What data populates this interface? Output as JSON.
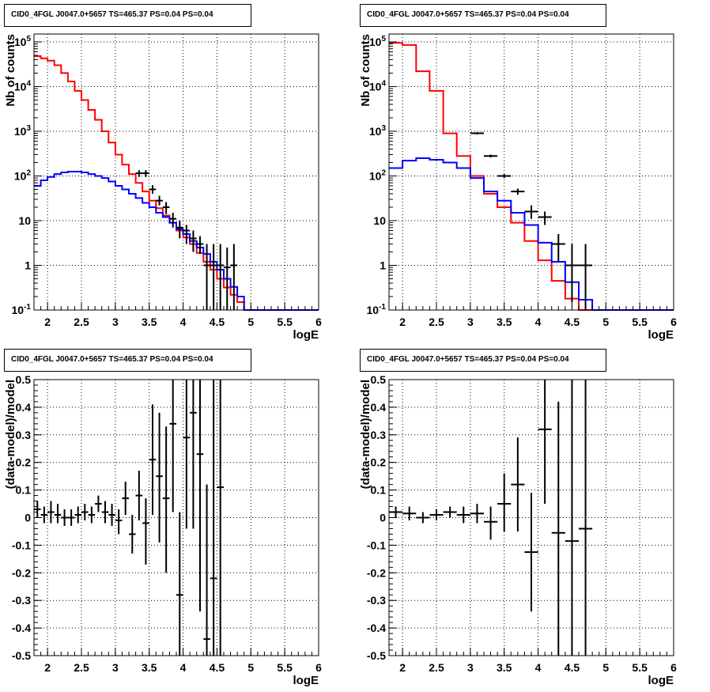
{
  "colors": {
    "frame": "#000000",
    "grid": "#000000",
    "data": "#000000",
    "total_model": "#ff0000",
    "background_model": "#0000ff"
  },
  "chart_data": [
    {
      "type": "line",
      "title": "CID0_4FGL J0047.0+5657 TS=465.37 PS=0.04 PS=0.04",
      "xlabel": "logE",
      "ylabel": "Nb of counts",
      "xlim": [
        1.8,
        6.0
      ],
      "ylim": [
        0.1,
        150000
      ],
      "yscale": "log",
      "grid": true,
      "xticks": [
        "2",
        "2.5",
        "3",
        "3.5",
        "4",
        "4.5",
        "5",
        "5.5",
        "6"
      ],
      "yticks": [
        "10^-1",
        "1",
        "10",
        "10^2",
        "10^3",
        "10^4",
        "10^5"
      ],
      "series": [
        {
          "role": "total_model",
          "binwidth": 0.1,
          "edges_start": 1.8,
          "values": [
            48000,
            43000,
            38000,
            30000,
            20000,
            13000,
            8000,
            5000,
            3000,
            1800,
            1000,
            560,
            300,
            180,
            110,
            70,
            45,
            28,
            19,
            13,
            9,
            6,
            4.2,
            3.0,
            1.9,
            1.2,
            0.8,
            0.5,
            0.32,
            0.22,
            0.15,
            0.1,
            0.1,
            0.1,
            0.1,
            0.1,
            0.1,
            0.1,
            0.1,
            0.1,
            0.1,
            0.1
          ]
        },
        {
          "role": "background_model",
          "binwidth": 0.1,
          "edges_start": 1.8,
          "values": [
            60,
            80,
            95,
            110,
            120,
            125,
            125,
            120,
            110,
            100,
            90,
            75,
            60,
            50,
            40,
            32,
            25,
            20,
            15,
            12,
            9,
            6.5,
            5,
            3.5,
            2.5,
            1.8,
            1.2,
            0.8,
            0.5,
            0.33,
            0.2,
            0.1,
            0.1,
            0.1,
            0.1,
            0.1,
            0.1,
            0.1,
            0.1,
            0.1,
            0.1,
            0.1
          ]
        },
        {
          "role": "data",
          "x": [
            3.35,
            3.45,
            3.55,
            3.65,
            3.75,
            3.85,
            3.95,
            4.05,
            4.15,
            4.25,
            4.35,
            4.45,
            4.55,
            4.65,
            4.75
          ],
          "xerr": 0.05,
          "y": [
            115,
            115,
            50,
            28,
            20,
            11,
            7,
            6,
            4,
            3,
            1,
            1,
            1,
            0.9,
            1
          ],
          "ylo": [
            95,
            95,
            40,
            22,
            14,
            7,
            4,
            3,
            2,
            1.8,
            0.1,
            0.1,
            0.1,
            0.1,
            0.1
          ],
          "yhi": [
            135,
            135,
            62,
            36,
            26,
            15,
            10,
            8,
            6,
            4.5,
            3,
            3,
            3,
            2.5,
            3
          ]
        }
      ]
    },
    {
      "type": "line",
      "title": "CID0_4FGL J0047.0+5657 TS=465.37 PS=0.04 PS=0.04",
      "xlabel": "logE",
      "ylabel": "Nb of counts",
      "xlim": [
        1.8,
        6.0
      ],
      "ylim": [
        0.1,
        150000
      ],
      "yscale": "log",
      "grid": true,
      "xticks": [
        "2",
        "2.5",
        "3",
        "3.5",
        "4",
        "4.5",
        "5",
        "5.5",
        "6"
      ],
      "yticks": [
        "10^-1",
        "1",
        "10",
        "10^2",
        "10^3",
        "10^4",
        "10^5"
      ],
      "series": [
        {
          "role": "total_model",
          "binwidth": 0.2,
          "edges_start": 1.8,
          "values": [
            95000,
            85000,
            22000,
            8000,
            900,
            280,
            100,
            40,
            20,
            9,
            3.5,
            1.3,
            0.45,
            0.18,
            0.1,
            0.1,
            0.1,
            0.1,
            0.1,
            0.1,
            0.1
          ]
        },
        {
          "role": "background_model",
          "binwidth": 0.2,
          "edges_start": 1.8,
          "values": [
            150,
            220,
            250,
            230,
            200,
            150,
            90,
            45,
            28,
            15,
            8,
            3.2,
            1.2,
            0.42,
            0.17,
            0.1,
            0.1,
            0.1,
            0.1,
            0.1,
            0.1
          ]
        },
        {
          "role": "data",
          "x": [
            3.1,
            3.3,
            3.5,
            3.7,
            3.9,
            4.1,
            4.3,
            4.5,
            4.7
          ],
          "xerr": 0.1,
          "y": [
            900,
            280,
            100,
            45,
            16,
            12,
            3,
            1,
            1
          ],
          "ylo": [
            850,
            260,
            90,
            38,
            11,
            8,
            1.2,
            0.15,
            0.1
          ],
          "yhi": [
            950,
            300,
            110,
            52,
            22,
            16,
            5,
            3,
            3
          ]
        }
      ]
    },
    {
      "type": "scatter",
      "title": "CID0_4FGL J0047.0+5657 TS=465.37 PS=0.04 PS=0.04",
      "xlabel": "logE",
      "ylabel": "(data-model)/model",
      "xlim": [
        1.8,
        6.0
      ],
      "ylim": [
        -0.5,
        0.5
      ],
      "grid": true,
      "xticks": [
        "2",
        "2.5",
        "3",
        "3.5",
        "4",
        "4.5",
        "5",
        "5.5",
        "6"
      ],
      "yticks": [
        "-0.5",
        "-0.4",
        "-0.3",
        "-0.2",
        "-0.1",
        "0",
        "0.1",
        "0.2",
        "0.3",
        "0.4",
        "0.5"
      ],
      "xerr": 0.05,
      "points": [
        {
          "x": 1.85,
          "y": 0.03,
          "lo": 0.0,
          "hi": 0.06
        },
        {
          "x": 1.95,
          "y": 0.01,
          "lo": -0.02,
          "hi": 0.04
        },
        {
          "x": 2.05,
          "y": 0.02,
          "lo": -0.02,
          "hi": 0.06
        },
        {
          "x": 2.15,
          "y": 0.01,
          "lo": -0.02,
          "hi": 0.05
        },
        {
          "x": 2.25,
          "y": 0.0,
          "lo": -0.03,
          "hi": 0.03
        },
        {
          "x": 2.35,
          "y": 0.0,
          "lo": -0.03,
          "hi": 0.03
        },
        {
          "x": 2.45,
          "y": 0.01,
          "lo": -0.02,
          "hi": 0.04
        },
        {
          "x": 2.55,
          "y": 0.02,
          "lo": -0.01,
          "hi": 0.05
        },
        {
          "x": 2.65,
          "y": 0.01,
          "lo": -0.02,
          "hi": 0.04
        },
        {
          "x": 2.75,
          "y": 0.05,
          "lo": 0.02,
          "hi": 0.08
        },
        {
          "x": 2.85,
          "y": 0.02,
          "lo": -0.02,
          "hi": 0.06
        },
        {
          "x": 2.95,
          "y": 0.01,
          "lo": -0.03,
          "hi": 0.05
        },
        {
          "x": 3.05,
          "y": -0.01,
          "lo": -0.06,
          "hi": 0.03
        },
        {
          "x": 3.15,
          "y": 0.07,
          "lo": 0.01,
          "hi": 0.13
        },
        {
          "x": 3.25,
          "y": -0.06,
          "lo": -0.13,
          "hi": 0.01
        },
        {
          "x": 3.35,
          "y": 0.08,
          "lo": -0.01,
          "hi": 0.17
        },
        {
          "x": 3.45,
          "y": -0.02,
          "lo": -0.17,
          "hi": 0.07
        },
        {
          "x": 3.55,
          "y": 0.21,
          "lo": 0.01,
          "hi": 0.41
        },
        {
          "x": 3.65,
          "y": 0.15,
          "lo": -0.09,
          "hi": 0.38
        },
        {
          "x": 3.75,
          "y": 0.07,
          "lo": -0.2,
          "hi": 0.33
        },
        {
          "x": 3.85,
          "y": 0.34,
          "lo": 0.02,
          "hi": 0.5
        },
        {
          "x": 3.95,
          "y": -0.28,
          "lo": -0.5,
          "hi": 0.02
        },
        {
          "x": 4.05,
          "y": 0.29,
          "lo": -0.04,
          "hi": 0.5
        },
        {
          "x": 4.15,
          "y": 0.38,
          "lo": -0.04,
          "hi": 0.5
        },
        {
          "x": 4.25,
          "y": 0.23,
          "lo": -0.34,
          "hi": 0.5
        },
        {
          "x": 4.35,
          "y": -0.44,
          "lo": -0.5,
          "hi": 0.12
        },
        {
          "x": 4.45,
          "y": -0.22,
          "lo": -0.5,
          "hi": 0.5
        },
        {
          "x": 4.55,
          "y": 0.11,
          "lo": -0.5,
          "hi": 0.5
        }
      ]
    },
    {
      "type": "scatter",
      "title": "CID0_4FGL J0047.0+5657 TS=465.37 PS=0.04 PS=0.04",
      "xlabel": "logE",
      "ylabel": "(data-model)/model",
      "xlim": [
        1.8,
        6.0
      ],
      "ylim": [
        -0.5,
        0.5
      ],
      "grid": true,
      "xticks": [
        "2",
        "2.5",
        "3",
        "3.5",
        "4",
        "4.5",
        "5",
        "5.5",
        "6"
      ],
      "yticks": [
        "-0.5",
        "-0.4",
        "-0.3",
        "-0.2",
        "-0.1",
        "0",
        "0.1",
        "0.2",
        "0.3",
        "0.4",
        "0.5"
      ],
      "xerr": 0.1,
      "points": [
        {
          "x": 1.9,
          "y": 0.02,
          "lo": 0.0,
          "hi": 0.04
        },
        {
          "x": 2.1,
          "y": 0.015,
          "lo": -0.01,
          "hi": 0.04
        },
        {
          "x": 2.3,
          "y": 0.0,
          "lo": -0.02,
          "hi": 0.02
        },
        {
          "x": 2.5,
          "y": 0.01,
          "lo": -0.01,
          "hi": 0.03
        },
        {
          "x": 2.7,
          "y": 0.02,
          "lo": 0.0,
          "hi": 0.04
        },
        {
          "x": 2.9,
          "y": 0.01,
          "lo": -0.02,
          "hi": 0.04
        },
        {
          "x": 3.1,
          "y": 0.015,
          "lo": -0.02,
          "hi": 0.05
        },
        {
          "x": 3.3,
          "y": -0.015,
          "lo": -0.08,
          "hi": 0.04
        },
        {
          "x": 3.5,
          "y": 0.05,
          "lo": -0.05,
          "hi": 0.16
        },
        {
          "x": 3.7,
          "y": 0.12,
          "lo": -0.05,
          "hi": 0.29
        },
        {
          "x": 3.9,
          "y": -0.125,
          "lo": -0.34,
          "hi": 0.09
        },
        {
          "x": 4.1,
          "y": 0.32,
          "lo": 0.05,
          "hi": 0.5
        },
        {
          "x": 4.3,
          "y": -0.055,
          "lo": -0.5,
          "hi": 0.42
        },
        {
          "x": 4.5,
          "y": -0.085,
          "lo": -0.5,
          "hi": 0.5
        },
        {
          "x": 4.7,
          "y": -0.04,
          "lo": -0.5,
          "hi": 0.5
        }
      ]
    }
  ]
}
